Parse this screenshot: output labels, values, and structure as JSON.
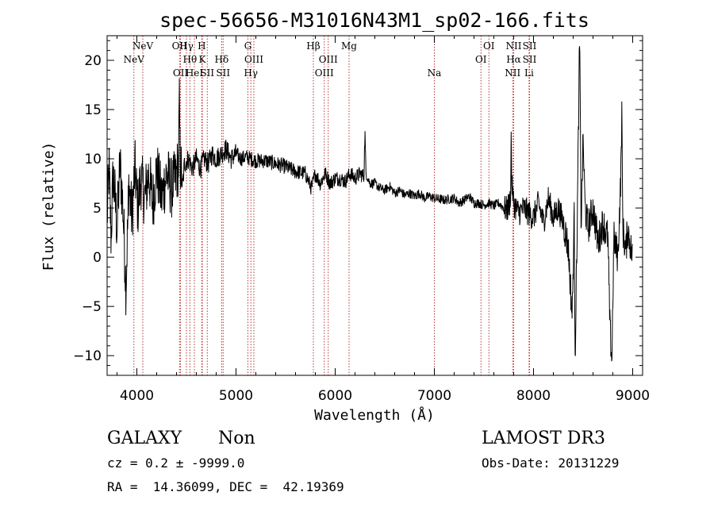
{
  "chart_data": {
    "type": "line",
    "title": "spec-56656-M31016N43M1_sp02-166.fits",
    "xlabel": "Wavelength (Å)",
    "ylabel": "Flux (relative)",
    "xlim": [
      3700,
      9100
    ],
    "ylim": [
      -12,
      22.5
    ],
    "xticks": [
      4000,
      5000,
      6000,
      7000,
      8000,
      9000
    ],
    "yticks": [
      -10,
      -5,
      0,
      5,
      10,
      15,
      20
    ],
    "line_color": "#000000",
    "marker_color": "#b02020",
    "spectrum_anchors": [
      [
        3700,
        4.0
      ],
      [
        3720,
        9.0
      ],
      [
        3740,
        2.0
      ],
      [
        3760,
        8.5
      ],
      [
        3780,
        6.0
      ],
      [
        3800,
        3.0
      ],
      [
        3830,
        9.5
      ],
      [
        3860,
        5.0
      ],
      [
        3890,
        -3.0
      ],
      [
        3920,
        7.5
      ],
      [
        3950,
        4.0
      ],
      [
        3980,
        9.0
      ],
      [
        4010,
        5.0
      ],
      [
        4040,
        8.0
      ],
      [
        4080,
        6.0
      ],
      [
        4120,
        8.5
      ],
      [
        4160,
        5.5
      ],
      [
        4200,
        9.0
      ],
      [
        4250,
        6.0
      ],
      [
        4300,
        8.5
      ],
      [
        4350,
        7.0
      ],
      [
        4390,
        8.0
      ],
      [
        4420,
        9.5
      ],
      [
        4428,
        16.0
      ],
      [
        4436,
        10.0
      ],
      [
        4460,
        7.0
      ],
      [
        4480,
        9.5
      ],
      [
        4520,
        10.0
      ],
      [
        4560,
        9.0
      ],
      [
        4600,
        10.0
      ],
      [
        4640,
        9.0
      ],
      [
        4680,
        10.0
      ],
      [
        4720,
        9.5
      ],
      [
        4760,
        10.5
      ],
      [
        4800,
        10.0
      ],
      [
        4850,
        10.5
      ],
      [
        4900,
        11.0
      ],
      [
        4950,
        10.0
      ],
      [
        5000,
        10.5
      ],
      [
        5050,
        10.0
      ],
      [
        5100,
        10.2
      ],
      [
        5150,
        10.0
      ],
      [
        5200,
        9.8
      ],
      [
        5300,
        9.8
      ],
      [
        5400,
        9.5
      ],
      [
        5500,
        9.2
      ],
      [
        5600,
        8.7
      ],
      [
        5700,
        8.5
      ],
      [
        5760,
        7.0
      ],
      [
        5800,
        8.5
      ],
      [
        5850,
        7.5
      ],
      [
        5900,
        8.5
      ],
      [
        5950,
        7.5
      ],
      [
        6000,
        8.0
      ],
      [
        6050,
        8.0
      ],
      [
        6100,
        7.7
      ],
      [
        6150,
        8.5
      ],
      [
        6200,
        8.0
      ],
      [
        6250,
        8.5
      ],
      [
        6290,
        8.2
      ],
      [
        6300,
        13.0
      ],
      [
        6310,
        8.5
      ],
      [
        6350,
        7.5
      ],
      [
        6400,
        7.5
      ],
      [
        6450,
        7.0
      ],
      [
        6500,
        6.8
      ],
      [
        6550,
        7.2
      ],
      [
        6600,
        6.5
      ],
      [
        6650,
        6.8
      ],
      [
        6700,
        6.3
      ],
      [
        6750,
        6.5
      ],
      [
        6800,
        6.2
      ],
      [
        6850,
        6.5
      ],
      [
        6900,
        6.0
      ],
      [
        6950,
        6.2
      ],
      [
        7000,
        6.0
      ],
      [
        7100,
        5.8
      ],
      [
        7200,
        6.0
      ],
      [
        7250,
        5.5
      ],
      [
        7300,
        5.8
      ],
      [
        7350,
        6.2
      ],
      [
        7400,
        5.5
      ],
      [
        7450,
        5.5
      ],
      [
        7500,
        5.3
      ],
      [
        7550,
        5.5
      ],
      [
        7600,
        5.2
      ],
      [
        7650,
        5.5
      ],
      [
        7700,
        5.0
      ],
      [
        7730,
        4.8
      ],
      [
        7760,
        5.5
      ],
      [
        7770,
        7.0
      ],
      [
        7775,
        13.5
      ],
      [
        7780,
        7.5
      ],
      [
        7800,
        5.5
      ],
      [
        7850,
        4.5
      ],
      [
        7900,
        5.0
      ],
      [
        7950,
        4.5
      ],
      [
        8000,
        4.0
      ],
      [
        8050,
        5.5
      ],
      [
        8100,
        3.5
      ],
      [
        8150,
        6.0
      ],
      [
        8200,
        4.0
      ],
      [
        8250,
        5.0
      ],
      [
        8300,
        3.5
      ],
      [
        8350,
        1.0
      ],
      [
        8390,
        -6.0
      ],
      [
        8410,
        4.0
      ],
      [
        8420,
        -10.0
      ],
      [
        8440,
        3.0
      ],
      [
        8465,
        22.5
      ],
      [
        8480,
        3.0
      ],
      [
        8500,
        12.0
      ],
      [
        8520,
        5.0
      ],
      [
        8550,
        3.0
      ],
      [
        8600,
        5.0
      ],
      [
        8650,
        1.5
      ],
      [
        8700,
        3.5
      ],
      [
        8750,
        2.0
      ],
      [
        8770,
        -7.0
      ],
      [
        8790,
        -10.5
      ],
      [
        8810,
        2.0
      ],
      [
        8850,
        0.0
      ],
      [
        8880,
        8.0
      ],
      [
        8890,
        15.0
      ],
      [
        8900,
        3.0
      ],
      [
        8930,
        0.5
      ],
      [
        8950,
        3.0
      ],
      [
        8980,
        1.0
      ],
      [
        9000,
        0.0
      ]
    ],
    "line_markers": [
      {
        "label": "NeV",
        "x": 3970,
        "row": 1
      },
      {
        "label": "NeV",
        "x": 4060,
        "row": 0
      },
      {
        "label": "OII",
        "x": 4430,
        "row": 0
      },
      {
        "label": "OII",
        "x": 4440,
        "row": 2
      },
      {
        "label": "Hγ",
        "x": 4500,
        "row": 0
      },
      {
        "label": "Hθ",
        "x": 4535,
        "row": 1
      },
      {
        "label": "HeI",
        "x": 4580,
        "row": 2
      },
      {
        "label": "H",
        "x": 4655,
        "row": 0
      },
      {
        "label": "K",
        "x": 4660,
        "row": 1
      },
      {
        "label": "SII",
        "x": 4710,
        "row": 2
      },
      {
        "label": "Hδ",
        "x": 4855,
        "row": 1
      },
      {
        "label": "SII",
        "x": 4870,
        "row": 2
      },
      {
        "label": "G",
        "x": 5120,
        "row": 0
      },
      {
        "label": "OIII",
        "x": 5180,
        "row": 1
      },
      {
        "label": "Hγ",
        "x": 5150,
        "row": 2
      },
      {
        "label": "Hβ",
        "x": 5780,
        "row": 0
      },
      {
        "label": "OIII",
        "x": 5930,
        "row": 1
      },
      {
        "label": "OIII",
        "x": 5890,
        "row": 2
      },
      {
        "label": "Mg",
        "x": 6140,
        "row": 0
      },
      {
        "label": "Na",
        "x": 7000,
        "row": 2
      },
      {
        "label": "OI",
        "x": 7550,
        "row": 0
      },
      {
        "label": "OI",
        "x": 7470,
        "row": 1
      },
      {
        "label": "NII",
        "x": 7800,
        "row": 0
      },
      {
        "label": "Hα",
        "x": 7800,
        "row": 1
      },
      {
        "label": "NII",
        "x": 7790,
        "row": 2
      },
      {
        "label": "SII",
        "x": 7960,
        "row": 0
      },
      {
        "label": "SII",
        "x": 7960,
        "row": 1
      },
      {
        "label": "Li",
        "x": 7955,
        "row": 2
      }
    ]
  },
  "footer": {
    "object_class": "GALAXY",
    "subclass": "Non",
    "survey": "LAMOST DR3",
    "cz": "cz = 0.2 ± -9999.0",
    "obs_date": "Obs-Date: 20131229",
    "coords": "RA =  14.36099, DEC =  42.19369"
  }
}
